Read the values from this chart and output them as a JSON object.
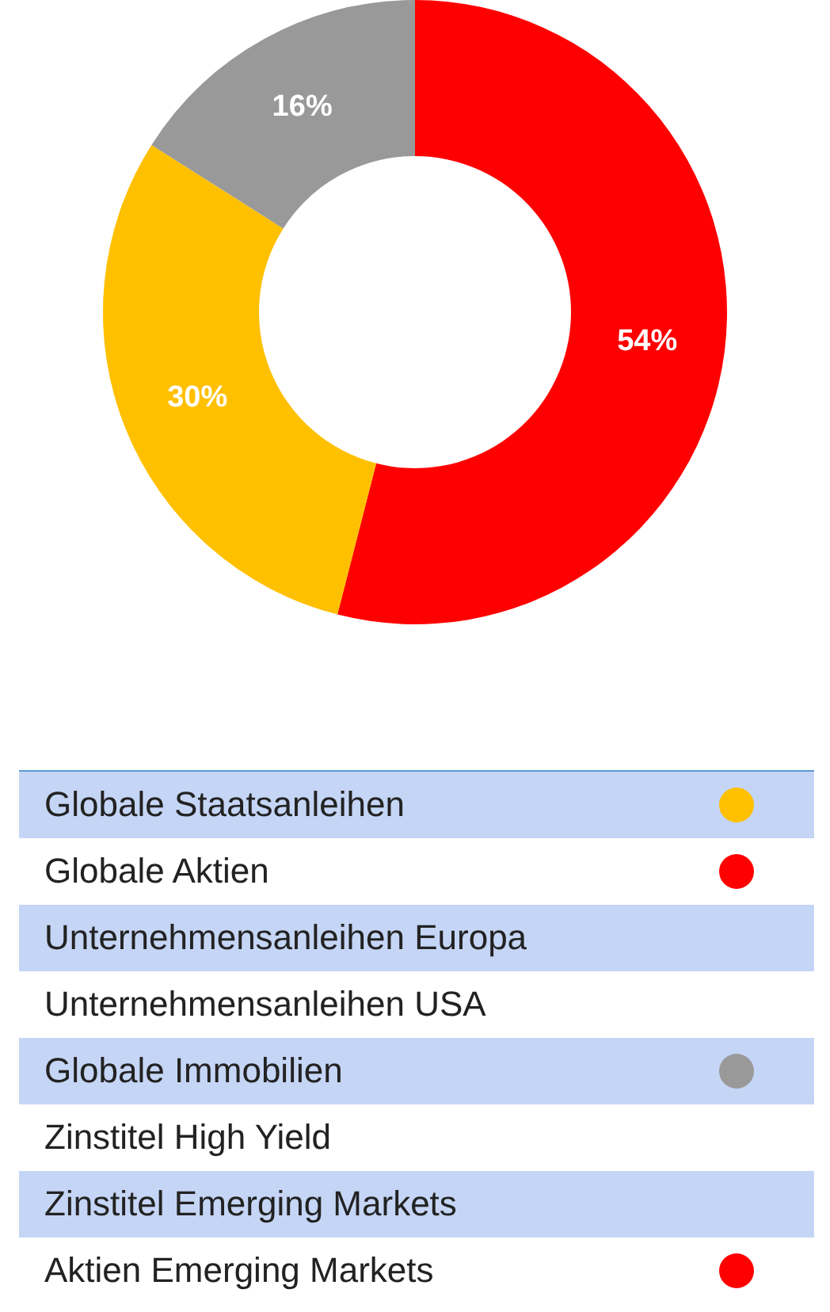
{
  "chart_data": {
    "type": "donut",
    "categories": [
      null,
      null,
      null
    ],
    "values": [
      54,
      30,
      16
    ],
    "colors": [
      "#ff0000",
      "#ffc000",
      "#999999"
    ],
    "value_labels": [
      "54%",
      "30%",
      "16%"
    ],
    "legend": false,
    "annotations": [
      "Globale Staatsanleihen",
      "Globale Aktien",
      "Unternehmensanleihen Europa",
      "Unternehmensanleihen USA",
      "Globale Immobilien",
      "Zinstitel High Yield",
      "Zinstitel Emerging Markets",
      "Aktien Emerging Markets"
    ]
  }
}
